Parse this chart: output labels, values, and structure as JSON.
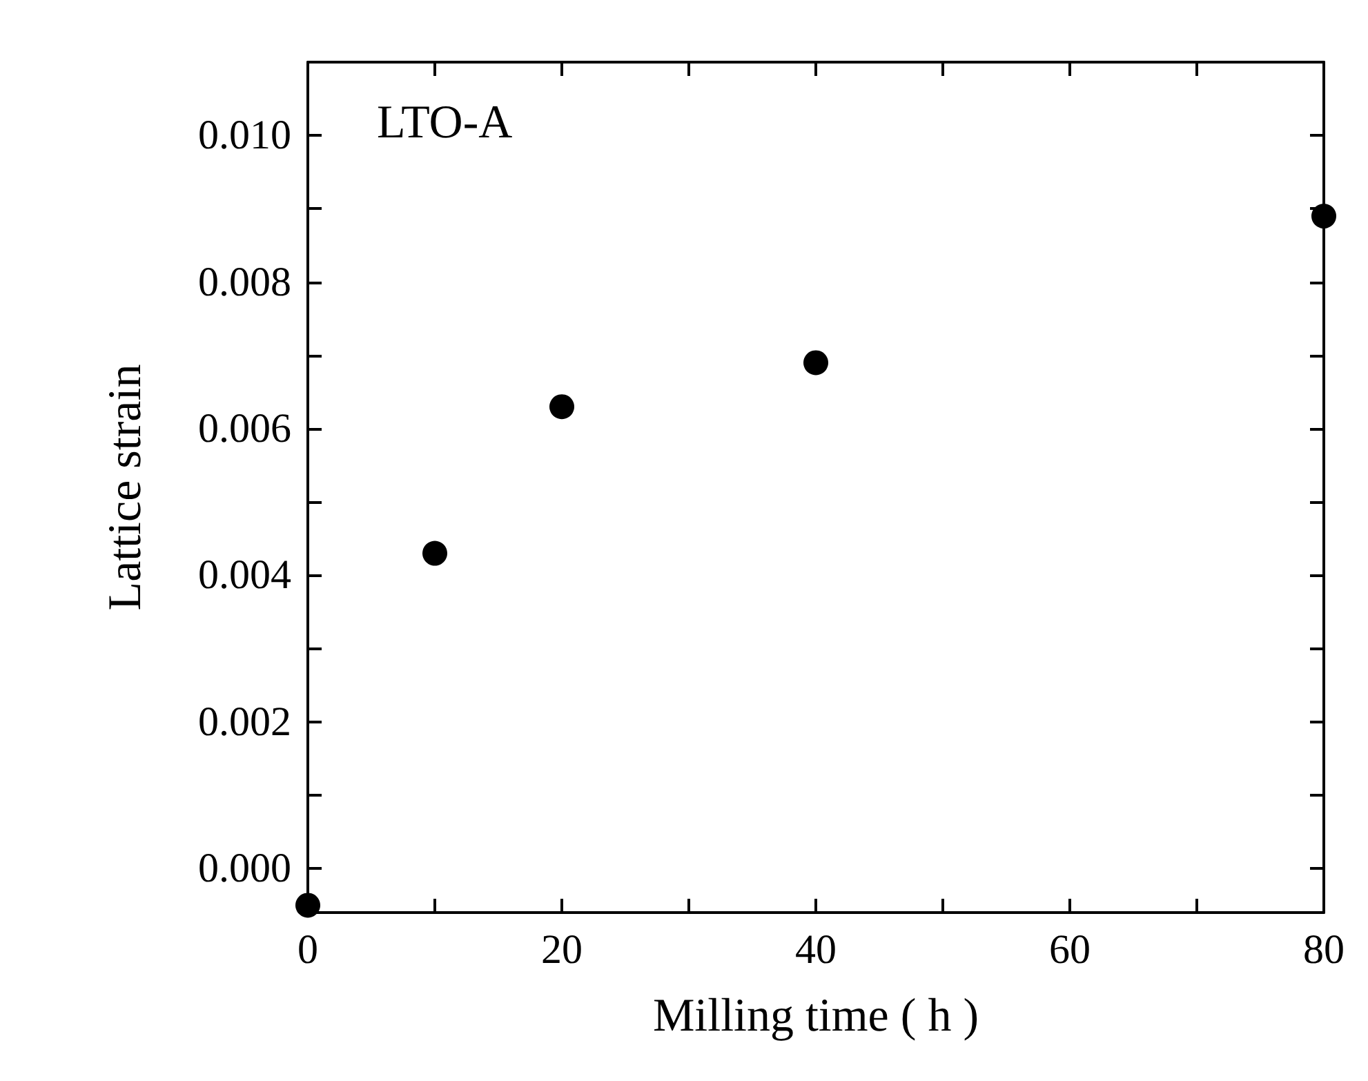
{
  "chart_data": {
    "type": "scatter",
    "xlabel": "Milling time ( h )",
    "ylabel": "Lattice strain",
    "annotations": [
      "LTO-A"
    ],
    "x": [
      0,
      10,
      20,
      40,
      80
    ],
    "series": [
      {
        "color": "#000000",
        "values": [
          -0.0005,
          0.0043,
          0.0063,
          0.0069,
          0.0089
        ]
      }
    ],
    "xlim": [
      0,
      80
    ],
    "xticks": [
      0,
      {
        "value": 10,
        "label": null
      },
      20,
      {
        "value": 30,
        "label": null
      },
      40,
      {
        "value": 50,
        "label": null
      },
      60,
      {
        "value": 70,
        "label": null
      },
      80
    ],
    "ylim": [
      -0.0006,
      0.011
    ],
    "yticks": [
      {
        "value": 0,
        "label": "0.000"
      },
      {
        "value": 0.001,
        "label": null
      },
      {
        "value": 0.002,
        "label": "0.002"
      },
      {
        "value": 0.003,
        "label": null
      },
      {
        "value": 0.004,
        "label": "0.004"
      },
      {
        "value": 0.005,
        "label": null
      },
      {
        "value": 0.006,
        "label": "0.006"
      },
      {
        "value": 0.007,
        "label": null
      },
      {
        "value": 0.008,
        "label": "0.008"
      },
      {
        "value": 0.009,
        "label": null
      },
      {
        "value": 0.01,
        "label": "0.010"
      }
    ],
    "marker": "circle",
    "grid": false
  }
}
